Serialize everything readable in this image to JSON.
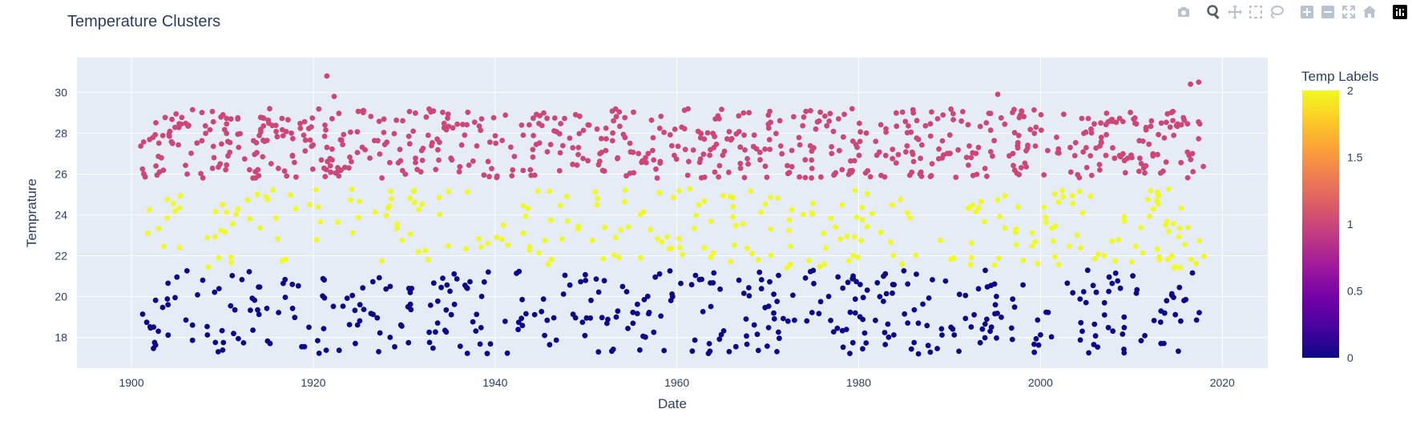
{
  "chart_data": {
    "type": "scatter",
    "title": "Temperature Clusters",
    "xlabel": "Date",
    "ylabel": "Temprature",
    "xlim": [
      1894,
      2025
    ],
    "ylim": [
      16.5,
      31.7
    ],
    "x_ticks": [
      1900,
      1920,
      1940,
      1960,
      1980,
      2000,
      2020
    ],
    "y_ticks": [
      18,
      20,
      22,
      24,
      26,
      28,
      30
    ],
    "x_range_data": [
      1901,
      2018
    ],
    "colorbar": {
      "title": "Temp Labels",
      "min": 0,
      "max": 2,
      "ticks": [
        "0",
        "0.5",
        "1",
        "1.5",
        "2"
      ],
      "colorscale": [
        "#0d0887",
        "#46039f",
        "#7201a8",
        "#9c179e",
        "#bd3786",
        "#d8576b",
        "#ed7953",
        "#fb9f3a",
        "#fdca26",
        "#f0f921"
      ]
    },
    "series": [
      {
        "label_value": 0,
        "color": "#0d0887",
        "y_range": [
          17.2,
          21.3
        ],
        "count": 420
      },
      {
        "label_value": 1,
        "color": "#cc4778",
        "y_range": [
          25.8,
          29.2
        ],
        "count": 700
      },
      {
        "label_value": 2,
        "color": "#f0f921",
        "y_range": [
          21.4,
          25.3
        ],
        "count": 290
      }
    ],
    "outliers": [
      {
        "x": 1921.5,
        "y": 30.8,
        "label_value": 1
      },
      {
        "x": 1922.3,
        "y": 29.8,
        "label_value": 1
      },
      {
        "x": 1995.3,
        "y": 29.9,
        "label_value": 1
      },
      {
        "x": 2016.5,
        "y": 30.4,
        "label_value": 1
      },
      {
        "x": 2017.4,
        "y": 30.5,
        "label_value": 1
      },
      {
        "x": 1915.2,
        "y": 29.2,
        "label_value": 1
      }
    ],
    "grid": true,
    "legend": "colorbar-right"
  },
  "modebar": {
    "icons": [
      "camera-icon",
      "zoom-icon",
      "pan-icon",
      "box-select-icon",
      "lasso-icon",
      "zoom-in-icon",
      "zoom-out-icon",
      "autoscale-icon",
      "reset-axes-icon",
      "plotly-logo-icon"
    ]
  }
}
